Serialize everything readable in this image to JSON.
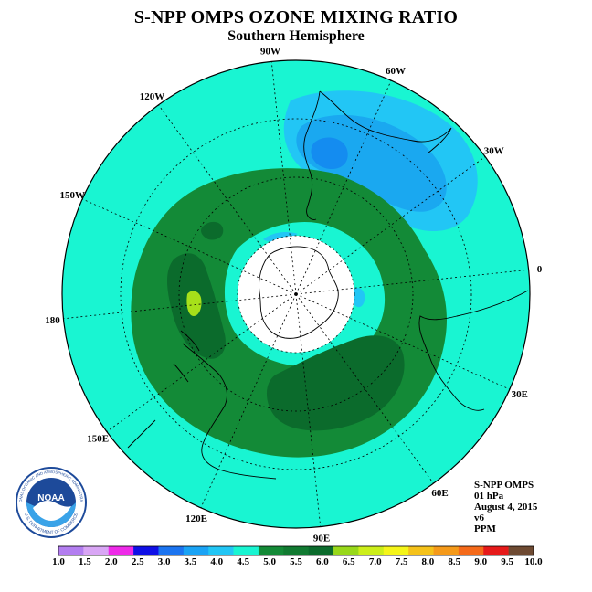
{
  "header": {
    "title": "S-NPP OMPS OZONE MIXING RATIO",
    "subtitle": "Southern Hemisphere"
  },
  "map": {
    "projection": "polar-stereographic-south",
    "longitude_labels": [
      "90W",
      "60W",
      "30W",
      "0",
      "30E",
      "60E",
      "90E",
      "120E",
      "150E",
      "180",
      "150W",
      "120W"
    ],
    "colors": {
      "background_field": "#19f5d2",
      "contour_blue_light": "#22c6f5",
      "contour_blue_mid": "#1aa8f0",
      "contour_blue_dark": "#148cf0",
      "contour_green": "#138a37",
      "contour_green_dark": "#0b6b2c",
      "contour_lime": "#a6e01a",
      "no_data": "#ffffff",
      "graticule": "#000000"
    }
  },
  "info": {
    "lines": [
      "S-NPP OMPS",
      "01 hPa",
      "August 4, 2015",
      "v6",
      "PPM"
    ]
  },
  "colorbar": {
    "labels": [
      "1.0",
      "1.5",
      "2.0",
      "2.5",
      "3.0",
      "3.5",
      "4.0",
      "4.5",
      "5.0",
      "5.5",
      "6.0",
      "6.5",
      "7.0",
      "7.5",
      "8.0",
      "8.5",
      "9.0",
      "9.5",
      "10.0"
    ],
    "colors": [
      "#b37ef0",
      "#d9a6f5",
      "#ee2ae8",
      "#1010e6",
      "#1b74f0",
      "#1aa3f5",
      "#22c6f5",
      "#19f5d2",
      "#148a37",
      "#117a31",
      "#0b6b2c",
      "#98d81a",
      "#ccee1a",
      "#f5f51a",
      "#f5c21a",
      "#f59a1a",
      "#f56a1a",
      "#e61a1a",
      "#6e4a32"
    ]
  },
  "logo": {
    "name": "NOAA",
    "ring_text": "NATIONAL OCEANIC AND ATMOSPHERIC ADMINISTRATION",
    "ring_text_bottom": "U.S. DEPARTMENT OF COMMERCE"
  }
}
